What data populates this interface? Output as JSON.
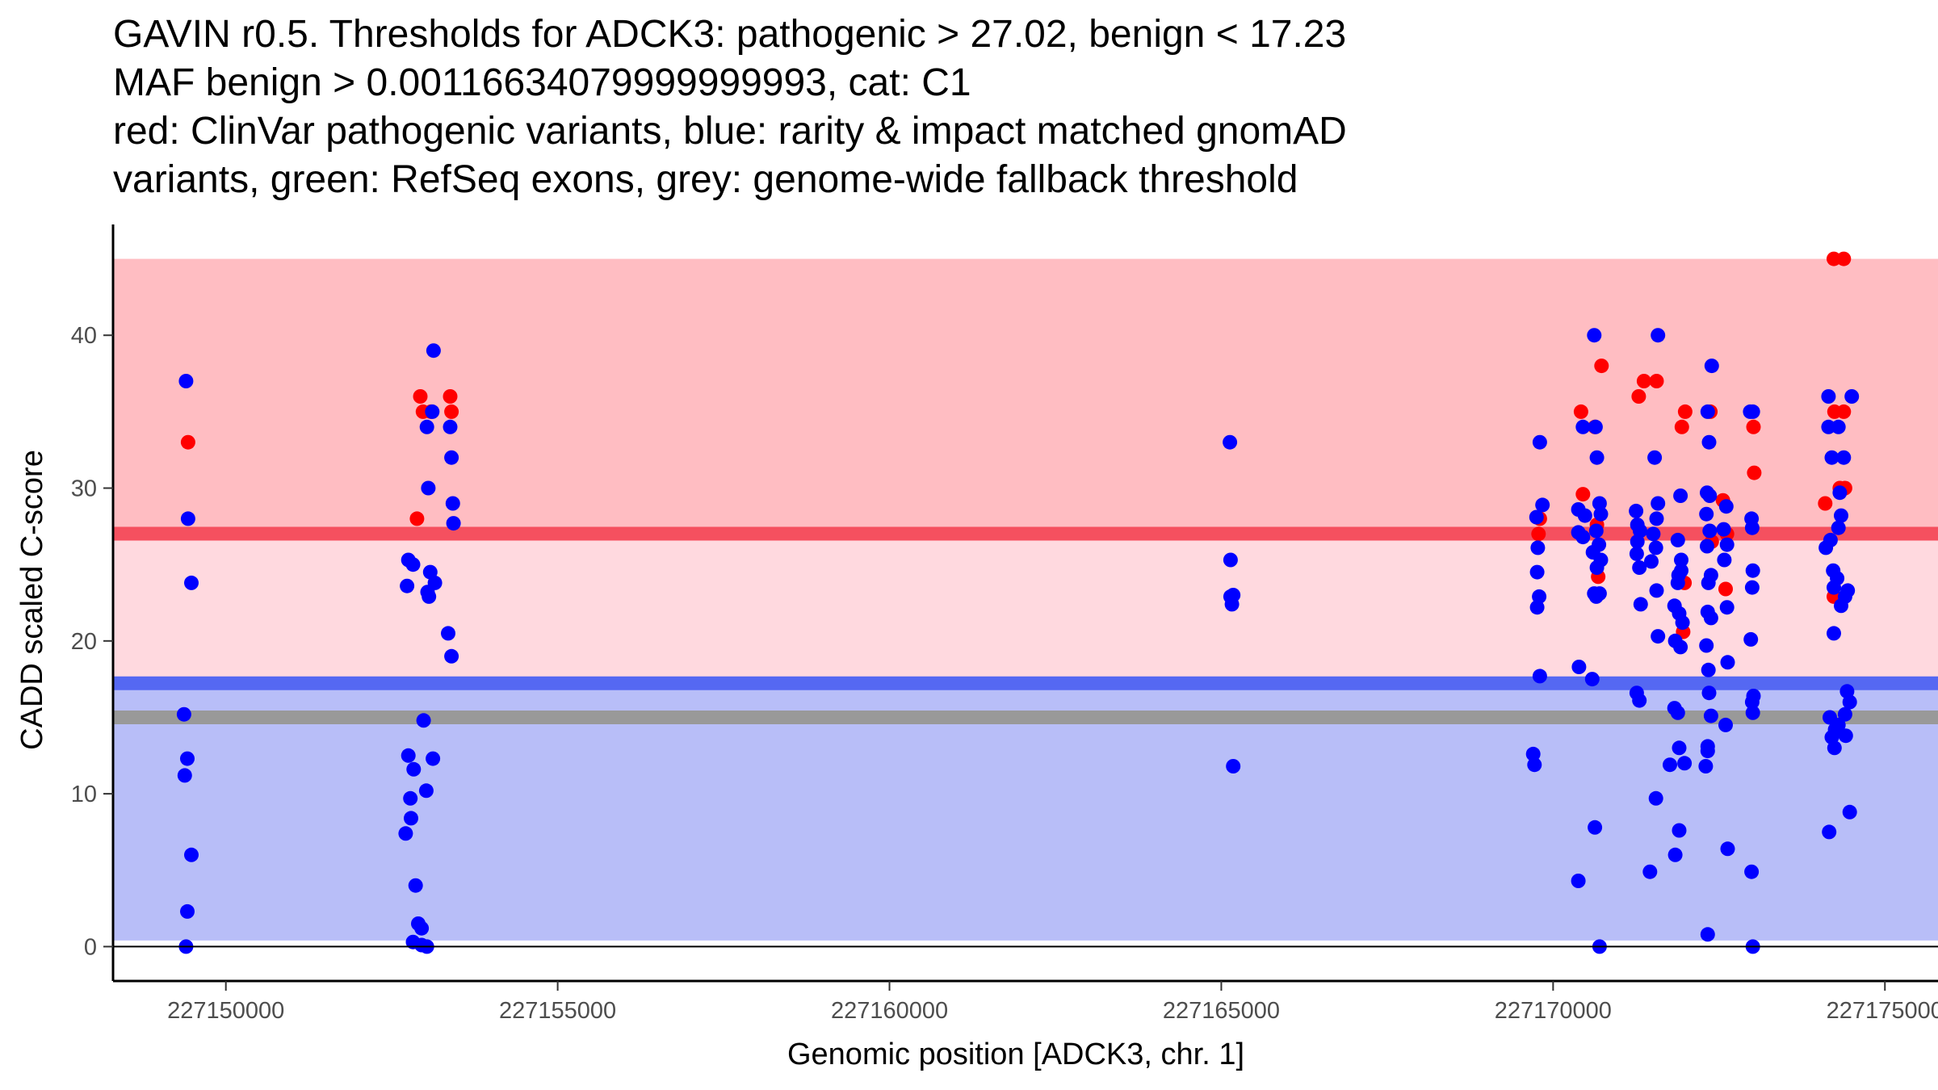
{
  "chart_data": {
    "type": "scatter",
    "title_lines": [
      "GAVIN r0.5. Thresholds for ADCK3: pathogenic > 27.02, benign < 17.23",
      "MAF benign > 0.00116634079999999993, cat: C1",
      "red: ClinVar pathogenic variants, blue: rarity & impact matched gnomAD",
      "variants, green: RefSeq exons, grey: genome-wide fallback threshold"
    ],
    "xlabel": "Genomic position [ADCK3, chr. 1]",
    "ylabel": "CADD scaled C-score",
    "xlim": [
      227148300,
      227175800
    ],
    "ylim": [
      -2.25,
      47.25
    ],
    "x_ticks": [
      227150000,
      227155000,
      227160000,
      227165000,
      227170000,
      227175000
    ],
    "x_tick_labels": [
      "227150000",
      "227155000",
      "227160000",
      "227165000",
      "227170000",
      "227175000"
    ],
    "y_ticks": [
      0,
      10,
      20,
      30,
      40
    ],
    "y_tick_labels": [
      "0",
      "10",
      "20",
      "30",
      "40"
    ],
    "grid": false,
    "bands": [
      {
        "name": "pathogenic-zone",
        "ymin": 27.02,
        "ymax": 45,
        "color": "#FFBDC2"
      },
      {
        "name": "vus-zone",
        "ymin": 17.23,
        "ymax": 27.02,
        "color": "#FFD9DF"
      },
      {
        "name": "benign-zone",
        "ymin": 0.4,
        "ymax": 17.23,
        "color": "#B8BEF8"
      }
    ],
    "threshold_lines": [
      {
        "name": "pathogenic-threshold",
        "y": 27.02,
        "color": "#F5505F"
      },
      {
        "name": "benign-threshold",
        "y": 17.23,
        "color": "#5568F2"
      },
      {
        "name": "fallback-threshold",
        "y": 15.0,
        "color": "#999999"
      }
    ],
    "series": [
      {
        "name": "ClinVar pathogenic",
        "color": "#FF0000",
        "points": [
          [
            227149430,
            33
          ],
          [
            227152930,
            36
          ],
          [
            227152880,
            28
          ],
          [
            227152970,
            35
          ],
          [
            227153090,
            35
          ],
          [
            227153380,
            36
          ],
          [
            227153400,
            35
          ],
          [
            227169800,
            28
          ],
          [
            227169780,
            27
          ],
          [
            227170420,
            35
          ],
          [
            227170450,
            29.6
          ],
          [
            227170630,
            34
          ],
          [
            227170660,
            27.6
          ],
          [
            227170680,
            24.2
          ],
          [
            227170730,
            38
          ],
          [
            227171290,
            36
          ],
          [
            227171370,
            37
          ],
          [
            227171560,
            37
          ],
          [
            227171940,
            34
          ],
          [
            227171990,
            35
          ],
          [
            227171980,
            23.8
          ],
          [
            227171960,
            20.6
          ],
          [
            227172370,
            35
          ],
          [
            227172390,
            26.5
          ],
          [
            227172560,
            29.2
          ],
          [
            227172600,
            23.4
          ],
          [
            227172620,
            27
          ],
          [
            227173020,
            34
          ],
          [
            227173030,
            31
          ],
          [
            227174100,
            29
          ],
          [
            227174230,
            45
          ],
          [
            227174380,
            45
          ],
          [
            227174240,
            35
          ],
          [
            227174380,
            35
          ],
          [
            227174320,
            30
          ],
          [
            227174400,
            30
          ],
          [
            227174230,
            22.9
          ]
        ]
      },
      {
        "name": "gnomAD matched",
        "color": "#0000FF",
        "points": [
          [
            227149400,
            37
          ],
          [
            227149430,
            28
          ],
          [
            227149480,
            23.8
          ],
          [
            227149370,
            15.2
          ],
          [
            227149420,
            12.3
          ],
          [
            227149380,
            11.2
          ],
          [
            227149480,
            6
          ],
          [
            227149420,
            2.3
          ],
          [
            227149400,
            0
          ],
          [
            227153130,
            39
          ],
          [
            227153110,
            35
          ],
          [
            227153030,
            34
          ],
          [
            227153050,
            30
          ],
          [
            227152750,
            25.3
          ],
          [
            227152820,
            25
          ],
          [
            227152730,
            23.6
          ],
          [
            227153080,
            24.5
          ],
          [
            227153150,
            23.8
          ],
          [
            227153040,
            23.2
          ],
          [
            227153060,
            22.9
          ],
          [
            227152980,
            14.8
          ],
          [
            227152750,
            12.5
          ],
          [
            227153120,
            12.3
          ],
          [
            227152830,
            11.6
          ],
          [
            227152780,
            9.7
          ],
          [
            227153020,
            10.2
          ],
          [
            227152790,
            8.4
          ],
          [
            227152710,
            7.4
          ],
          [
            227152860,
            4
          ],
          [
            227152900,
            1.5
          ],
          [
            227152950,
            1.2
          ],
          [
            227152820,
            0.3
          ],
          [
            227152950,
            0.1
          ],
          [
            227153030,
            0
          ],
          [
            227153380,
            34
          ],
          [
            227153400,
            32
          ],
          [
            227153420,
            29
          ],
          [
            227153430,
            27.7
          ],
          [
            227153350,
            20.5
          ],
          [
            227153400,
            19
          ],
          [
            227165130,
            33
          ],
          [
            227165140,
            25.3
          ],
          [
            227165180,
            23
          ],
          [
            227165140,
            22.9
          ],
          [
            227165160,
            22.4
          ],
          [
            227165180,
            11.8
          ],
          [
            227169800,
            33
          ],
          [
            227169840,
            28.9
          ],
          [
            227169750,
            28.1
          ],
          [
            227169770,
            26.1
          ],
          [
            227169760,
            24.5
          ],
          [
            227169790,
            22.9
          ],
          [
            227169760,
            22.2
          ],
          [
            227169800,
            17.7
          ],
          [
            227169700,
            12.6
          ],
          [
            227169720,
            11.9
          ],
          [
            227170450,
            34
          ],
          [
            227170380,
            28.6
          ],
          [
            227170480,
            28.2
          ],
          [
            227170380,
            27.1
          ],
          [
            227170450,
            26.8
          ],
          [
            227170620,
            40
          ],
          [
            227170640,
            34
          ],
          [
            227170660,
            32
          ],
          [
            227170700,
            29
          ],
          [
            227170720,
            28.3
          ],
          [
            227170650,
            27.2
          ],
          [
            227170690,
            26.3
          ],
          [
            227170600,
            25.8
          ],
          [
            227170720,
            25.3
          ],
          [
            227170660,
            24.8
          ],
          [
            227170620,
            23.1
          ],
          [
            227170700,
            23.1
          ],
          [
            227170650,
            22.9
          ],
          [
            227170390,
            18.3
          ],
          [
            227170590,
            17.5
          ],
          [
            227170630,
            7.8
          ],
          [
            227170380,
            4.3
          ],
          [
            227170700,
            0
          ],
          [
            227171250,
            28.5
          ],
          [
            227171270,
            27.6
          ],
          [
            227171310,
            27.2
          ],
          [
            227171270,
            26.5
          ],
          [
            227171260,
            25.7
          ],
          [
            227171300,
            24.8
          ],
          [
            227171320,
            22.4
          ],
          [
            227171260,
            16.6
          ],
          [
            227171300,
            16.1
          ],
          [
            227171580,
            40
          ],
          [
            227171530,
            32
          ],
          [
            227171580,
            29
          ],
          [
            227171560,
            28
          ],
          [
            227171510,
            27
          ],
          [
            227171480,
            25.2
          ],
          [
            227171550,
            26.1
          ],
          [
            227171560,
            23.3
          ],
          [
            227171580,
            20.3
          ],
          [
            227171550,
            9.7
          ],
          [
            227171460,
            4.9
          ],
          [
            227171920,
            29.5
          ],
          [
            227171880,
            26.6
          ],
          [
            227171930,
            25.3
          ],
          [
            227171930,
            24.6
          ],
          [
            227171890,
            24.3
          ],
          [
            227171880,
            23.8
          ],
          [
            227171830,
            22.3
          ],
          [
            227171900,
            21.8
          ],
          [
            227171950,
            21.2
          ],
          [
            227171840,
            20
          ],
          [
            227171920,
            19.6
          ],
          [
            227171880,
            15.3
          ],
          [
            227171830,
            15.6
          ],
          [
            227171900,
            13
          ],
          [
            227171760,
            11.9
          ],
          [
            227171900,
            7.6
          ],
          [
            227171840,
            6
          ],
          [
            227171980,
            12
          ],
          [
            227172390,
            38
          ],
          [
            227172330,
            35
          ],
          [
            227172350,
            33
          ],
          [
            227172320,
            29.7
          ],
          [
            227172360,
            29.5
          ],
          [
            227172310,
            28.3
          ],
          [
            227172360,
            27.2
          ],
          [
            227172320,
            26.2
          ],
          [
            227172380,
            24.3
          ],
          [
            227172340,
            23.8
          ],
          [
            227172330,
            21.9
          ],
          [
            227172380,
            21.5
          ],
          [
            227172310,
            19.7
          ],
          [
            227172340,
            18.1
          ],
          [
            227172350,
            16.6
          ],
          [
            227172380,
            15.1
          ],
          [
            227172330,
            13.1
          ],
          [
            227172330,
            12.8
          ],
          [
            227172300,
            11.8
          ],
          [
            227172330,
            0.8
          ],
          [
            227172610,
            28.8
          ],
          [
            227172570,
            27.3
          ],
          [
            227172620,
            26.3
          ],
          [
            227172580,
            25.3
          ],
          [
            227172620,
            22.2
          ],
          [
            227172630,
            18.6
          ],
          [
            227172600,
            14.5
          ],
          [
            227172630,
            6.4
          ],
          [
            227172970,
            35
          ],
          [
            227173010,
            35
          ],
          [
            227172990,
            28
          ],
          [
            227173000,
            27.4
          ],
          [
            227173010,
            24.6
          ],
          [
            227173000,
            23.5
          ],
          [
            227172980,
            20.1
          ],
          [
            227173020,
            16.4
          ],
          [
            227173000,
            16
          ],
          [
            227173010,
            15.3
          ],
          [
            227172990,
            4.9
          ],
          [
            227173010,
            0
          ],
          [
            227174150,
            36
          ],
          [
            227174150,
            34
          ],
          [
            227174300,
            34
          ],
          [
            227174200,
            32
          ],
          [
            227174380,
            32
          ],
          [
            227174320,
            29.7
          ],
          [
            227174340,
            28.2
          ],
          [
            227174300,
            27.4
          ],
          [
            227174180,
            26.6
          ],
          [
            227174110,
            26.1
          ],
          [
            227174220,
            24.6
          ],
          [
            227174280,
            24.1
          ],
          [
            227174230,
            23.5
          ],
          [
            227174440,
            23.3
          ],
          [
            227174400,
            22.9
          ],
          [
            227174340,
            22.3
          ],
          [
            227174230,
            20.5
          ],
          [
            227174430,
            16.7
          ],
          [
            227174470,
            16
          ],
          [
            227174400,
            15.2
          ],
          [
            227174170,
            15
          ],
          [
            227174300,
            14.5
          ],
          [
            227174250,
            14.2
          ],
          [
            227174200,
            13.7
          ],
          [
            227174410,
            13.8
          ],
          [
            227174240,
            13
          ],
          [
            227174470,
            8.8
          ],
          [
            227174160,
            7.5
          ],
          [
            227174500,
            36
          ]
        ]
      }
    ]
  }
}
